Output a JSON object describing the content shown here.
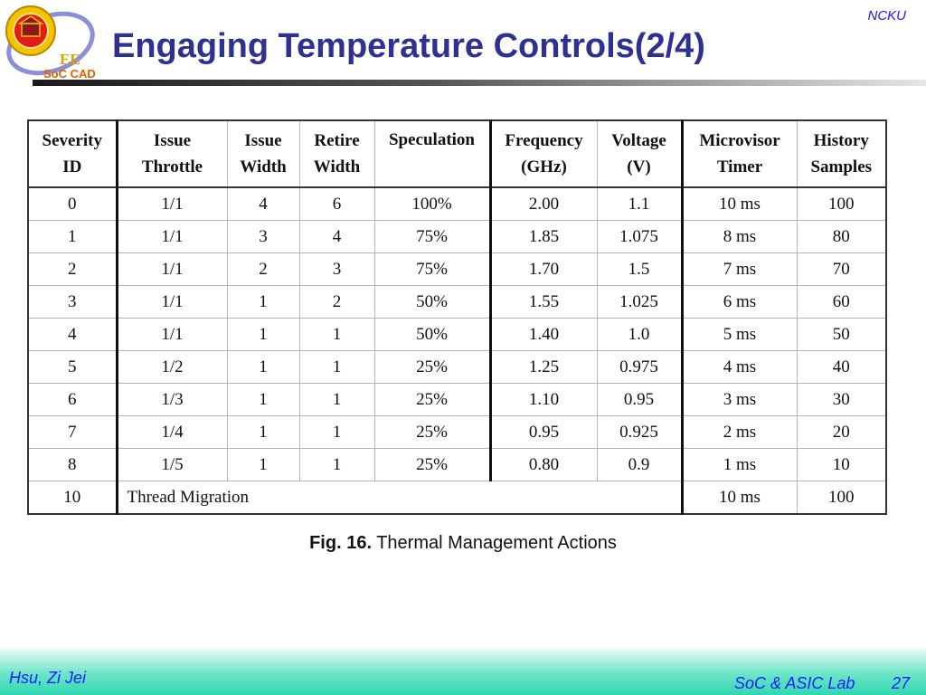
{
  "header": {
    "title": "Engaging Temperature Controls(2/4)",
    "org": "NCKU",
    "logo": {
      "ee": "EE",
      "soc_cad": "SoC CAD"
    }
  },
  "table": {
    "columns": [
      [
        "Severity",
        "ID"
      ],
      [
        "Issue",
        "Throttle"
      ],
      [
        "Issue",
        "Width"
      ],
      [
        "Retire",
        "Width"
      ],
      [
        "Speculation",
        ""
      ],
      [
        "Frequency",
        "(GHz)"
      ],
      [
        "Voltage",
        "(V)"
      ],
      [
        "Microvisor",
        "Timer"
      ],
      [
        "History",
        "Samples"
      ]
    ],
    "rows": [
      [
        "0",
        "1/1",
        "4",
        "6",
        "100%",
        "2.00",
        "1.1",
        "10 ms",
        "100"
      ],
      [
        "1",
        "1/1",
        "3",
        "4",
        "75%",
        "1.85",
        "1.075",
        "8 ms",
        "80"
      ],
      [
        "2",
        "1/1",
        "2",
        "3",
        "75%",
        "1.70",
        "1.5",
        "7 ms",
        "70"
      ],
      [
        "3",
        "1/1",
        "1",
        "2",
        "50%",
        "1.55",
        "1.025",
        "6 ms",
        "60"
      ],
      [
        "4",
        "1/1",
        "1",
        "1",
        "50%",
        "1.40",
        "1.0",
        "5 ms",
        "50"
      ],
      [
        "5",
        "1/2",
        "1",
        "1",
        "25%",
        "1.25",
        "0.975",
        "4 ms",
        "40"
      ],
      [
        "6",
        "1/3",
        "1",
        "1",
        "25%",
        "1.10",
        "0.95",
        "3 ms",
        "30"
      ],
      [
        "7",
        "1/4",
        "1",
        "1",
        "25%",
        "0.95",
        "0.925",
        "2 ms",
        "20"
      ],
      [
        "8",
        "1/5",
        "1",
        "1",
        "25%",
        "0.80",
        "0.9",
        "1 ms",
        "10"
      ]
    ],
    "migration_row": {
      "id": "10",
      "action": "Thread Migration",
      "timer": "10 ms",
      "samples": "100"
    }
  },
  "caption": {
    "label": "Fig. 16.",
    "text": "Thermal Management Actions"
  },
  "footer": {
    "author": "Hsu, Zi Jei",
    "lab": "SoC & ASIC Lab",
    "page": "27"
  },
  "colors": {
    "title": "#2e3192",
    "accent_text": "#1a1aff",
    "footer_band": "#2fd8b2"
  }
}
